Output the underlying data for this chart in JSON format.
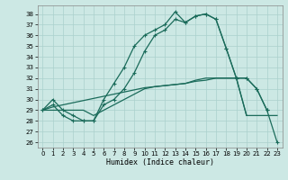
{
  "title": "",
  "xlabel": "Humidex (Indice chaleur)",
  "xlim": [
    -0.5,
    23.5
  ],
  "ylim": [
    25.5,
    38.8
  ],
  "yticks": [
    26,
    27,
    28,
    29,
    30,
    31,
    32,
    33,
    34,
    35,
    36,
    37,
    38
  ],
  "xticks": [
    0,
    1,
    2,
    3,
    4,
    5,
    6,
    7,
    8,
    9,
    10,
    11,
    12,
    13,
    14,
    15,
    16,
    17,
    18,
    19,
    20,
    21,
    22,
    23
  ],
  "bg_color": "#cce8e4",
  "grid_color": "#aad0cc",
  "line_color": "#1a6b5a",
  "curve_main": [
    29,
    30,
    29,
    28.5,
    28,
    28,
    30,
    31.5,
    33,
    35,
    36,
    36.5,
    37,
    38.2,
    37.2,
    37.8,
    38,
    37.5,
    34.8,
    32,
    32,
    31,
    29,
    26
  ],
  "curve_second": [
    29,
    29.5,
    28.5,
    28,
    28,
    28,
    29.5,
    30,
    31,
    32.5,
    34.5,
    36,
    36.5,
    37.5,
    37.2,
    37.8,
    38,
    37.5,
    34.8,
    32,
    32,
    31,
    29,
    null
  ],
  "curve_flat1": [
    29,
    29,
    29,
    29,
    29,
    28.5,
    29,
    29.5,
    30,
    30.5,
    31,
    31.2,
    31.3,
    31.4,
    31.5,
    31.8,
    32,
    32,
    32,
    32,
    28.5,
    28.5,
    28.5,
    28.5
  ],
  "curve_flat2": [
    29,
    29.3,
    29.5,
    29.7,
    29.9,
    30.1,
    30.3,
    30.5,
    30.7,
    30.9,
    31.1,
    31.2,
    31.3,
    31.4,
    31.5,
    31.7,
    31.8,
    32,
    32,
    32,
    28.5,
    null,
    null,
    null
  ]
}
